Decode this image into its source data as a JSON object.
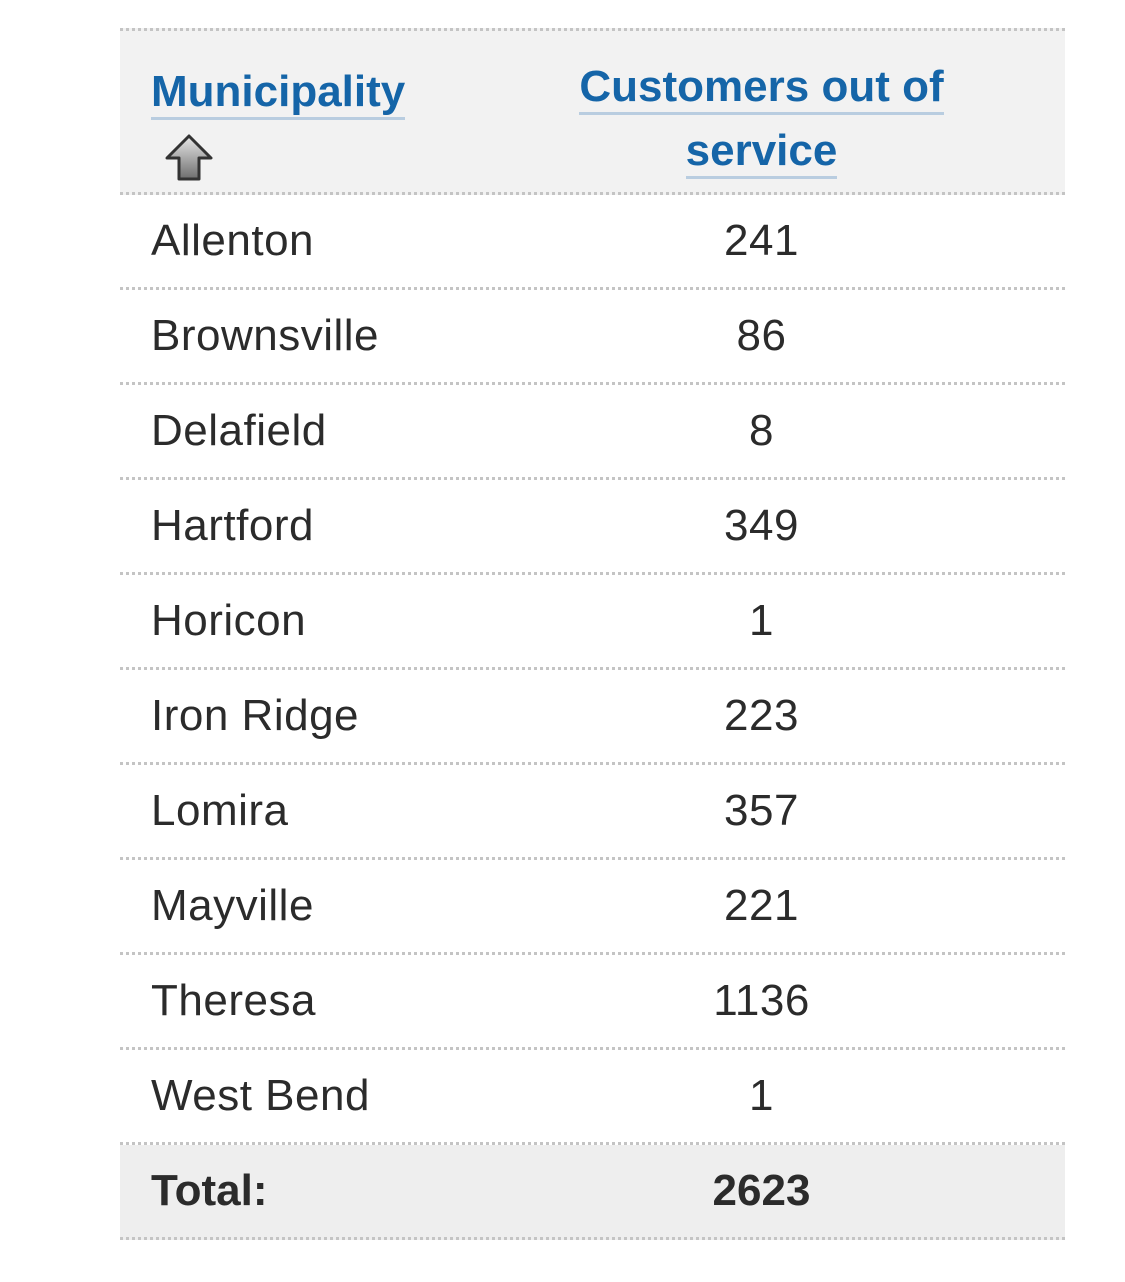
{
  "table": {
    "headers": {
      "municipality": "Municipality",
      "customers_line1": "Customers out of",
      "customers_line2": "service",
      "sort_icon": "sort-ascending-arrow-icon"
    },
    "rows": [
      {
        "municipality": "Allenton",
        "customers": "241"
      },
      {
        "municipality": "Brownsville",
        "customers": "86"
      },
      {
        "municipality": "Delafield",
        "customers": "8"
      },
      {
        "municipality": "Hartford",
        "customers": "349"
      },
      {
        "municipality": "Horicon",
        "customers": "1"
      },
      {
        "municipality": "Iron Ridge",
        "customers": "223"
      },
      {
        "municipality": "Lomira",
        "customers": "357"
      },
      {
        "municipality": "Mayville",
        "customers": "221"
      },
      {
        "municipality": "Theresa",
        "customers": "1136"
      },
      {
        "municipality": "West Bend",
        "customers": "1"
      }
    ],
    "total": {
      "label": "Total:",
      "value": "2623"
    }
  },
  "colors": {
    "header_link": "#1565a8",
    "header_bg": "#f2f2f2",
    "text": "#2b2b2b",
    "divider": "#c4c4c4"
  }
}
